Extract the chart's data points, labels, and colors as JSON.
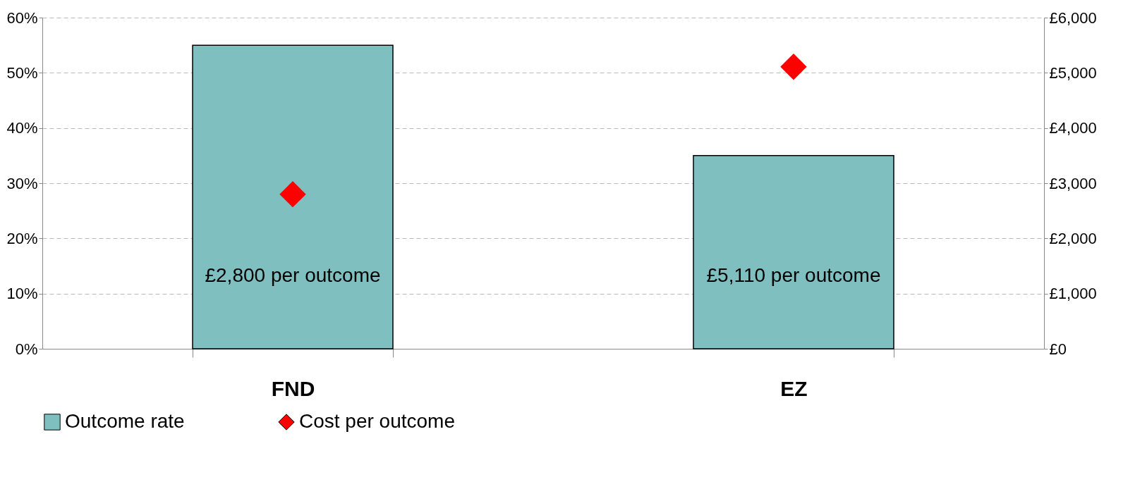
{
  "chart_data": {
    "type": "bar",
    "categories": [
      "FND",
      "EZ"
    ],
    "series": [
      {
        "name": "Outcome rate",
        "color": "#7fbfbf",
        "values": [
          55,
          35
        ]
      },
      {
        "name": "Cost per outcome",
        "type": "scatter",
        "axis": "y2",
        "marker": "diamond",
        "color": "#ff0000",
        "values": [
          2800,
          5110
        ]
      }
    ],
    "ylim": [
      0,
      60
    ],
    "yticks": [
      {
        "value": 0,
        "label": "0%"
      },
      {
        "value": 10,
        "label": "10%"
      },
      {
        "value": 20,
        "label": "20%"
      },
      {
        "value": 30,
        "label": "30%"
      },
      {
        "value": 40,
        "label": "40%"
      },
      {
        "value": 50,
        "label": "50%"
      },
      {
        "value": 60,
        "label": "60%"
      }
    ],
    "y2lim": [
      0,
      6000
    ],
    "y2ticks": [
      {
        "value": 0,
        "label": "£0"
      },
      {
        "value": 1000,
        "label": "£1,000"
      },
      {
        "value": 2000,
        "label": "£2,000"
      },
      {
        "value": 3000,
        "label": "£3,000"
      },
      {
        "value": 4000,
        "label": "£4,000"
      },
      {
        "value": 5000,
        "label": "£5,000"
      },
      {
        "value": 6000,
        "label": "£6,000"
      }
    ],
    "annotations": [
      "£2,800 per outcome",
      "£5,110 per outcome"
    ],
    "grid": "y",
    "legend": "bottom"
  }
}
